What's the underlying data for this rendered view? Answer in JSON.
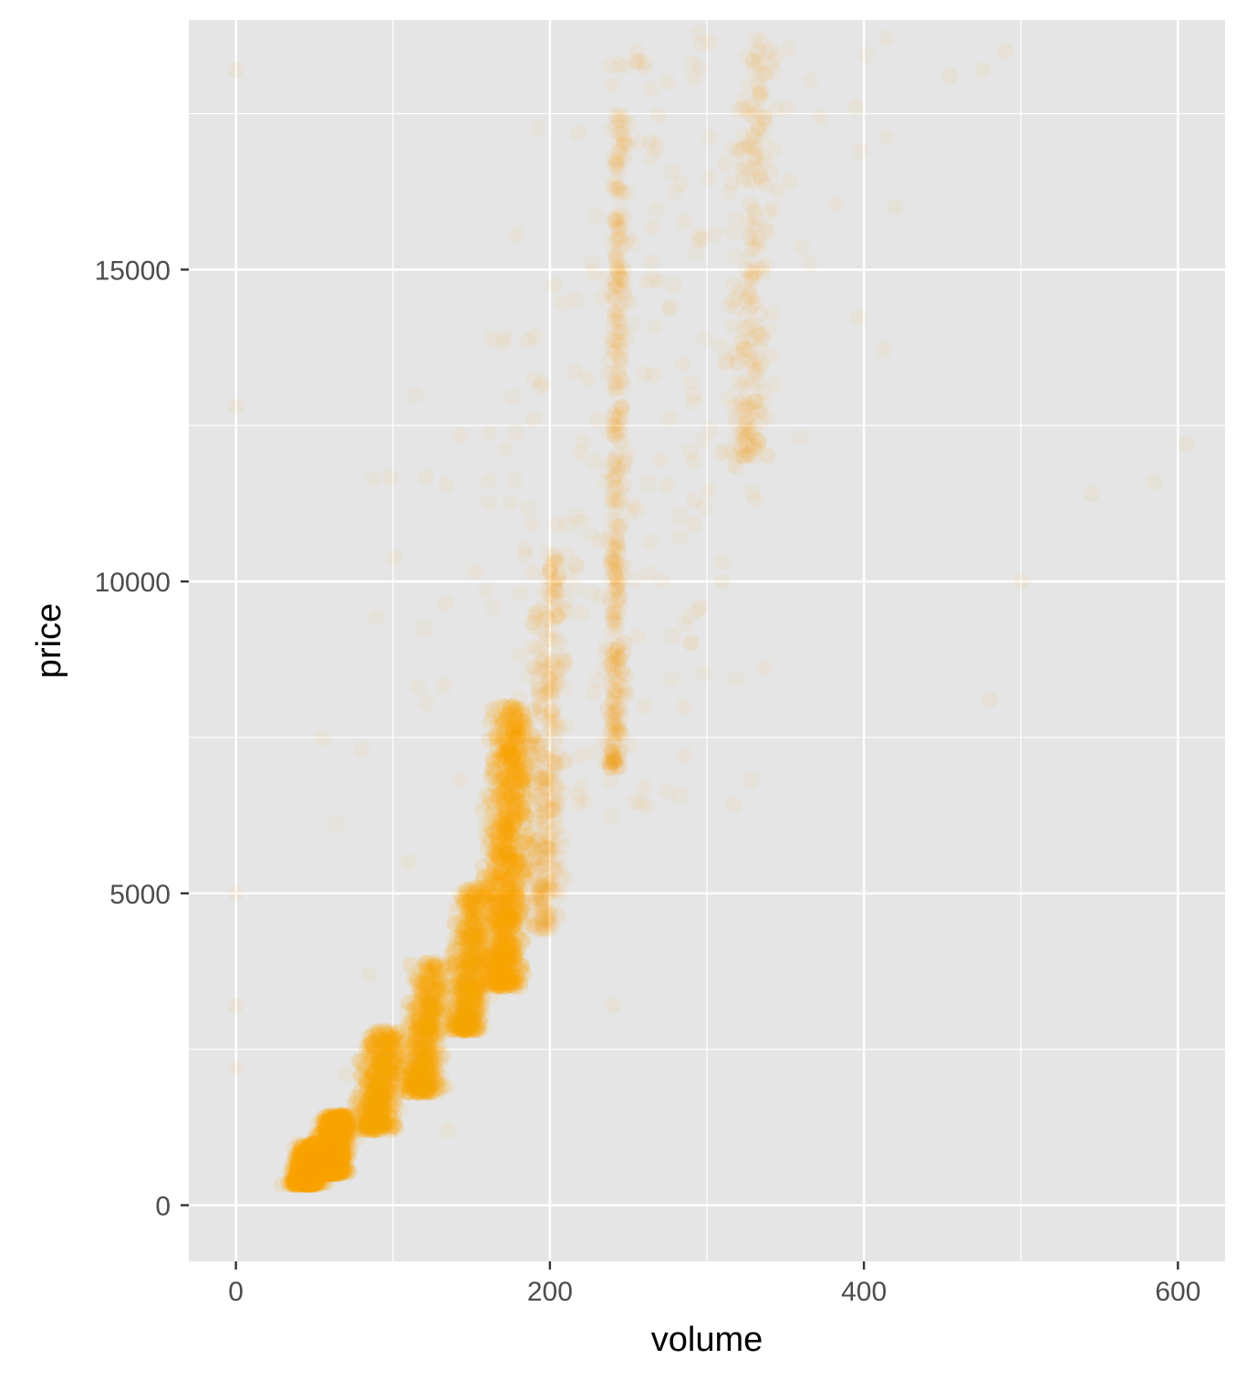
{
  "chart_data": {
    "type": "scatter",
    "title": "",
    "xlabel": "volume",
    "ylabel": "price",
    "xlim": [
      -30,
      630
    ],
    "ylim": [
      -900,
      19000
    ],
    "x_ticks": [
      0,
      200,
      400,
      600
    ],
    "x_tick_labels": [
      "0",
      "200",
      "400",
      "600"
    ],
    "y_ticks": [
      0,
      5000,
      10000,
      15000
    ],
    "y_tick_labels": [
      "0",
      "5000",
      "10000",
      "15000"
    ],
    "x_minor_gridlines": [
      100,
      300,
      500
    ],
    "y_minor_gridlines": [
      2500,
      7500,
      12500,
      17500
    ],
    "grid": true,
    "legend": "none",
    "point_color": "#FFA500",
    "point_alpha": 0.05,
    "panel_background": "#E5E5E5",
    "grid_color": "#FFFFFF",
    "density_clusters": [
      {
        "x_center": 47,
        "x_spread": 8,
        "y_min": 330,
        "y_max": 1000,
        "density": "very high"
      },
      {
        "x_center": 62,
        "x_spread": 8,
        "y_min": 500,
        "y_max": 1450,
        "density": "very high"
      },
      {
        "x_center": 92,
        "x_spread": 10,
        "y_min": 1200,
        "y_max": 2800,
        "density": "high"
      },
      {
        "x_center": 122,
        "x_spread": 10,
        "y_min": 1800,
        "y_max": 3900,
        "density": "high"
      },
      {
        "x_center": 150,
        "x_spread": 9,
        "y_min": 2800,
        "y_max": 5100,
        "density": "high"
      },
      {
        "x_center": 173,
        "x_spread": 10,
        "y_min": 3500,
        "y_max": 8000,
        "density": "very high"
      },
      {
        "x_center": 198,
        "x_spread": 9,
        "y_min": 4400,
        "y_max": 10500,
        "density": "medium"
      },
      {
        "x_center": 243,
        "x_spread": 4,
        "y_min": 7000,
        "y_max": 17500,
        "density": "medium"
      },
      {
        "x_center": 330,
        "x_spread": 10,
        "y_min": 12000,
        "y_max": 18700,
        "density": "low"
      },
      {
        "x_center": 250,
        "x_spread": 90,
        "y_min": 6000,
        "y_max": 18800,
        "density": "sparse"
      }
    ],
    "sample_points": [
      [
        0,
        18200
      ],
      [
        0,
        12800
      ],
      [
        0,
        5000
      ],
      [
        0,
        3200
      ],
      [
        0,
        2200
      ],
      [
        455,
        18100
      ],
      [
        476,
        18200
      ],
      [
        490,
        18500
      ],
      [
        605,
        12200
      ],
      [
        585,
        11600
      ],
      [
        545,
        11400
      ],
      [
        480,
        8100
      ],
      [
        500,
        10000
      ],
      [
        395,
        17600
      ],
      [
        420,
        16000
      ],
      [
        135,
        1200
      ],
      [
        110,
        5500
      ],
      [
        95,
        2500
      ],
      [
        70,
        2100
      ],
      [
        140,
        4500
      ],
      [
        85,
        3700
      ],
      [
        240,
        3200
      ],
      [
        260,
        6700
      ],
      [
        290,
        9000
      ],
      [
        310,
        10000
      ]
    ]
  }
}
